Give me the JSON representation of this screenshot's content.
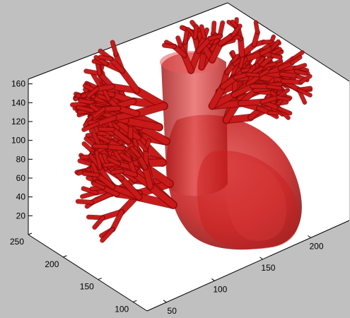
{
  "chart_data": {
    "type": "volume-render-3d",
    "title": "",
    "xlabel": "",
    "ylabel": "",
    "zlabel": "",
    "z_ticks": [
      20,
      40,
      60,
      80,
      100,
      120,
      140,
      160
    ],
    "y_ticks": [
      100,
      150,
      200,
      250
    ],
    "x_ticks": [
      50,
      100,
      150,
      200
    ],
    "zlim": [
      0,
      165
    ],
    "ylim": [
      80,
      250
    ],
    "xlim": [
      30,
      240
    ],
    "grid": false,
    "colors": {
      "figure_background": "#c0c0c0",
      "axes_background": "#ffffff",
      "surface": "#cc1a1a",
      "surface_dark": "#8a0808",
      "surface_light": "#e85a5a"
    },
    "object": "3D rendered vascular tree / heart volume"
  }
}
